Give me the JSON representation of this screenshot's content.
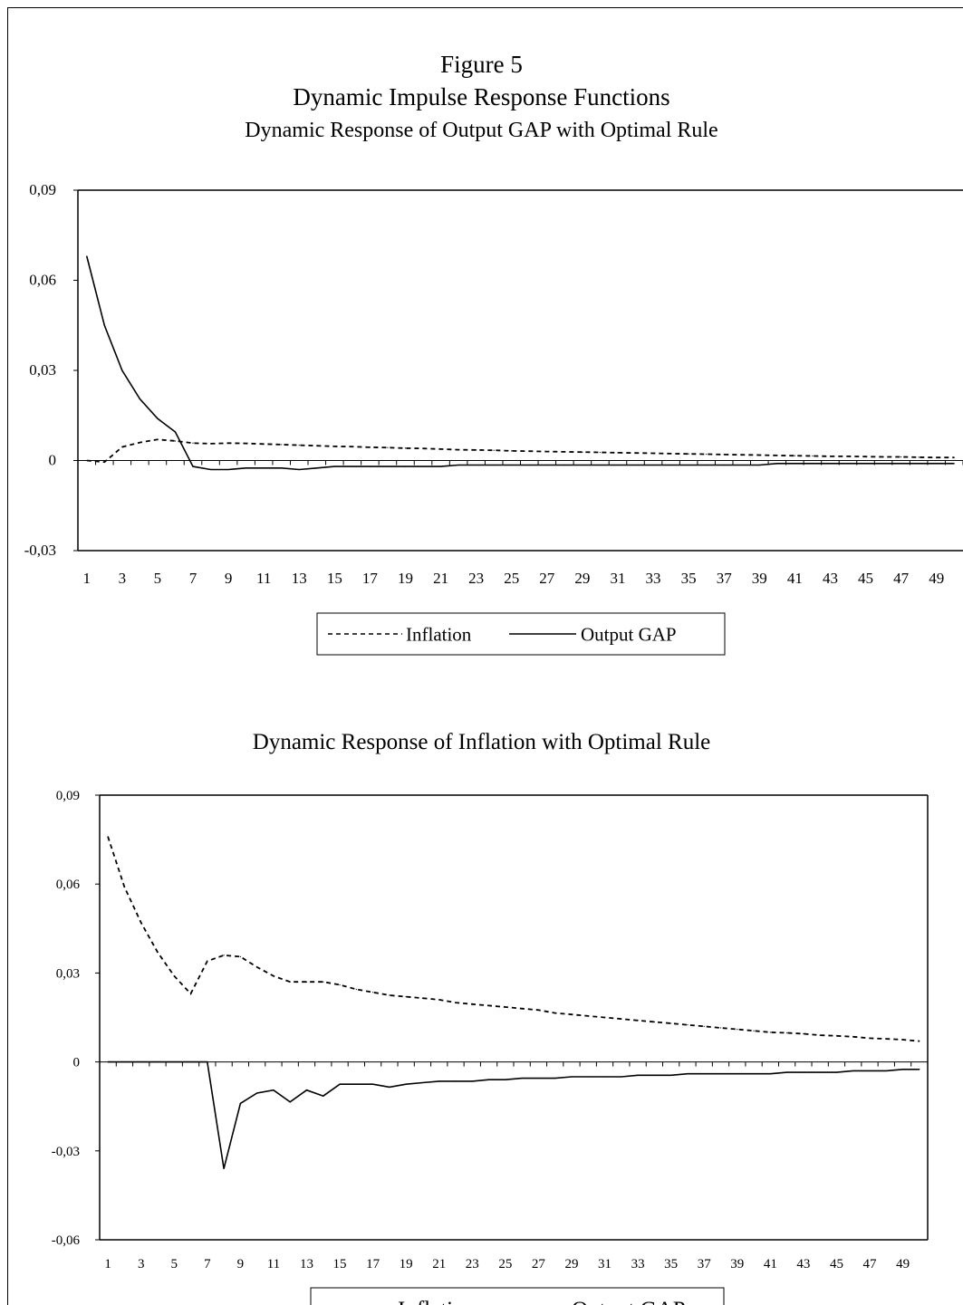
{
  "figure": {
    "title": "Figure 5",
    "subtitle": "Dynamic Impulse Response Functions"
  },
  "chart_data": [
    {
      "type": "line",
      "title": "Dynamic Response of Output GAP with Optimal Rule",
      "xlabel": "",
      "ylabel": "",
      "x": [
        1,
        2,
        3,
        4,
        5,
        6,
        7,
        8,
        9,
        10,
        11,
        12,
        13,
        14,
        15,
        16,
        17,
        18,
        19,
        20,
        21,
        22,
        23,
        24,
        25,
        26,
        27,
        28,
        29,
        30,
        31,
        32,
        33,
        34,
        35,
        36,
        37,
        38,
        39,
        40,
        41,
        42,
        43,
        44,
        45,
        46,
        47,
        48,
        49,
        50
      ],
      "x_tick_labels": [
        "1",
        "3",
        "5",
        "7",
        "9",
        "11",
        "13",
        "15",
        "17",
        "19",
        "21",
        "23",
        "25",
        "27",
        "29",
        "31",
        "33",
        "35",
        "37",
        "39",
        "41",
        "43",
        "45",
        "47",
        "49"
      ],
      "ylim": [
        -0.03,
        0.09
      ],
      "y_tick_values": [
        -0.03,
        0,
        0.03,
        0.06,
        0.09
      ],
      "y_tick_labels": [
        "-0,03",
        "0",
        "0,03",
        "0,06",
        "0,09"
      ],
      "grid": false,
      "legend_position": "bottom",
      "series": [
        {
          "name": "Inflation",
          "style": "dashed",
          "color": "#000000",
          "values": [
            0.0,
            -0.0005,
            0.0045,
            0.006,
            0.007,
            0.0065,
            0.0058,
            0.0056,
            0.0058,
            0.0057,
            0.0055,
            0.0053,
            0.0051,
            0.0049,
            0.0047,
            0.0046,
            0.0044,
            0.0043,
            0.0041,
            0.004,
            0.0038,
            0.0036,
            0.0035,
            0.0034,
            0.0032,
            0.0031,
            0.003,
            0.0029,
            0.0028,
            0.0027,
            0.0026,
            0.0025,
            0.0024,
            0.0023,
            0.0022,
            0.0021,
            0.002,
            0.0019,
            0.0018,
            0.0017,
            0.0016,
            0.0015,
            0.0014,
            0.0014,
            0.0013,
            0.0012,
            0.0012,
            0.0011,
            0.001,
            0.001
          ]
        },
        {
          "name": "Output GAP",
          "style": "solid",
          "color": "#000000",
          "values": [
            0.068,
            0.045,
            0.03,
            0.0205,
            0.014,
            0.0095,
            -0.002,
            -0.003,
            -0.003,
            -0.0025,
            -0.0025,
            -0.0025,
            -0.003,
            -0.0025,
            -0.002,
            -0.002,
            -0.002,
            -0.002,
            -0.002,
            -0.002,
            -0.002,
            -0.0015,
            -0.0015,
            -0.0015,
            -0.0015,
            -0.0015,
            -0.0015,
            -0.0015,
            -0.0015,
            -0.0015,
            -0.0015,
            -0.0015,
            -0.0015,
            -0.0015,
            -0.0015,
            -0.0015,
            -0.0015,
            -0.0015,
            -0.0015,
            -0.001,
            -0.001,
            -0.001,
            -0.001,
            -0.001,
            -0.001,
            -0.001,
            -0.001,
            -0.001,
            -0.001,
            -0.001
          ]
        }
      ]
    },
    {
      "type": "line",
      "title": "Dynamic Response of Inflation with Optimal Rule",
      "xlabel": "",
      "ylabel": "",
      "x": [
        1,
        2,
        3,
        4,
        5,
        6,
        7,
        8,
        9,
        10,
        11,
        12,
        13,
        14,
        15,
        16,
        17,
        18,
        19,
        20,
        21,
        22,
        23,
        24,
        25,
        26,
        27,
        28,
        29,
        30,
        31,
        32,
        33,
        34,
        35,
        36,
        37,
        38,
        39,
        40,
        41,
        42,
        43,
        44,
        45,
        46,
        47,
        48,
        49,
        50
      ],
      "x_tick_labels": [
        "1",
        "3",
        "5",
        "7",
        "9",
        "11",
        "13",
        "15",
        "17",
        "19",
        "21",
        "23",
        "25",
        "27",
        "29",
        "31",
        "33",
        "35",
        "37",
        "39",
        "41",
        "43",
        "45",
        "47",
        "49"
      ],
      "ylim": [
        -0.06,
        0.09
      ],
      "y_tick_values": [
        -0.06,
        -0.03,
        0,
        0.03,
        0.06,
        0.09
      ],
      "y_tick_labels": [
        "-0,06",
        "-0,03",
        "0",
        "0,03",
        "0,06",
        "0,09"
      ],
      "grid": false,
      "legend_position": "bottom",
      "series": [
        {
          "name": "Inflation",
          "style": "dashed",
          "color": "#000000",
          "values": [
            0.076,
            0.059,
            0.047,
            0.037,
            0.029,
            0.023,
            0.034,
            0.036,
            0.0355,
            0.032,
            0.029,
            0.027,
            0.027,
            0.027,
            0.026,
            0.0245,
            0.0235,
            0.0225,
            0.022,
            0.0215,
            0.021,
            0.02,
            0.0195,
            0.019,
            0.0185,
            0.018,
            0.0175,
            0.0165,
            0.016,
            0.0155,
            0.015,
            0.0145,
            0.014,
            0.0135,
            0.013,
            0.0125,
            0.012,
            0.0115,
            0.011,
            0.0105,
            0.01,
            0.0098,
            0.0095,
            0.009,
            0.0088,
            0.0085,
            0.008,
            0.0078,
            0.0075,
            0.007
          ]
        },
        {
          "name": "Output GAP",
          "style": "solid",
          "color": "#000000",
          "values": [
            0,
            0,
            0,
            0,
            0,
            0,
            0,
            -0.036,
            -0.014,
            -0.0105,
            -0.0095,
            -0.0135,
            -0.0095,
            -0.0115,
            -0.0075,
            -0.0075,
            -0.0075,
            -0.0085,
            -0.0075,
            -0.007,
            -0.0065,
            -0.0065,
            -0.0065,
            -0.006,
            -0.006,
            -0.0055,
            -0.0055,
            -0.0055,
            -0.005,
            -0.005,
            -0.005,
            -0.005,
            -0.0045,
            -0.0045,
            -0.0045,
            -0.004,
            -0.004,
            -0.004,
            -0.004,
            -0.004,
            -0.004,
            -0.0035,
            -0.0035,
            -0.0035,
            -0.0035,
            -0.003,
            -0.003,
            -0.003,
            -0.0025,
            -0.0025
          ]
        }
      ]
    }
  ]
}
